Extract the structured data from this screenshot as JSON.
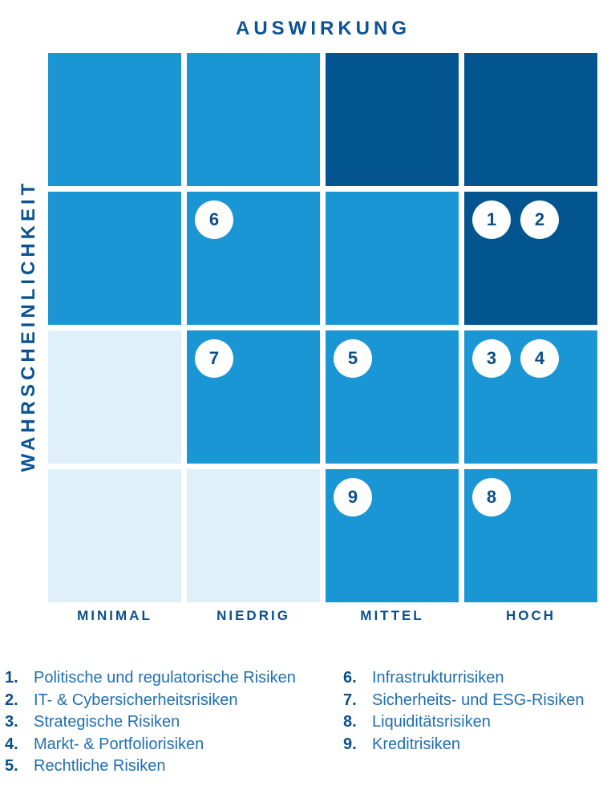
{
  "axis": {
    "x_title": "AUSWIRKUNG",
    "y_title": "WAHRSCHEINLICHKEIT",
    "columns": [
      "MINIMAL",
      "NIEDRIG",
      "MITTEL",
      "HOCH"
    ]
  },
  "colors": {
    "light": "#dff0f8",
    "medium": "#1a96d4",
    "dark": "#02558f",
    "text": "#0b5394"
  },
  "matrix": [
    [
      "medium",
      "medium",
      "dark",
      "dark"
    ],
    [
      "medium",
      "medium",
      "medium",
      "dark"
    ],
    [
      "light",
      "medium",
      "medium",
      "medium"
    ],
    [
      "light",
      "light",
      "medium",
      "medium"
    ]
  ],
  "markers": [
    {
      "label": "6",
      "row": 1,
      "col": 1,
      "slot": 0
    },
    {
      "label": "1",
      "row": 1,
      "col": 3,
      "slot": 0
    },
    {
      "label": "2",
      "row": 1,
      "col": 3,
      "slot": 1
    },
    {
      "label": "7",
      "row": 2,
      "col": 1,
      "slot": 0
    },
    {
      "label": "5",
      "row": 2,
      "col": 2,
      "slot": 0
    },
    {
      "label": "3",
      "row": 2,
      "col": 3,
      "slot": 0
    },
    {
      "label": "4",
      "row": 2,
      "col": 3,
      "slot": 1
    },
    {
      "label": "9",
      "row": 3,
      "col": 2,
      "slot": 0
    },
    {
      "label": "8",
      "row": 3,
      "col": 3,
      "slot": 0
    }
  ],
  "legend": {
    "left": [
      {
        "num": "1.",
        "text": "Politische und regulatorische Risiken"
      },
      {
        "num": "2.",
        "text": "IT- & Cybersicherheitsrisiken"
      },
      {
        "num": "3.",
        "text": "Strategische Risiken"
      },
      {
        "num": "4.",
        "text": "Markt- & Portfoliorisiken"
      },
      {
        "num": "5.",
        "text": "Rechtliche Risiken"
      }
    ],
    "right": [
      {
        "num": "6.",
        "text": "Infrastrukturrisiken"
      },
      {
        "num": "7.",
        "text": "Sicherheits- und ESG-Risiken"
      },
      {
        "num": "8.",
        "text": "Liquiditätsrisiken"
      },
      {
        "num": "9.",
        "text": "Kreditrisiken"
      }
    ]
  }
}
